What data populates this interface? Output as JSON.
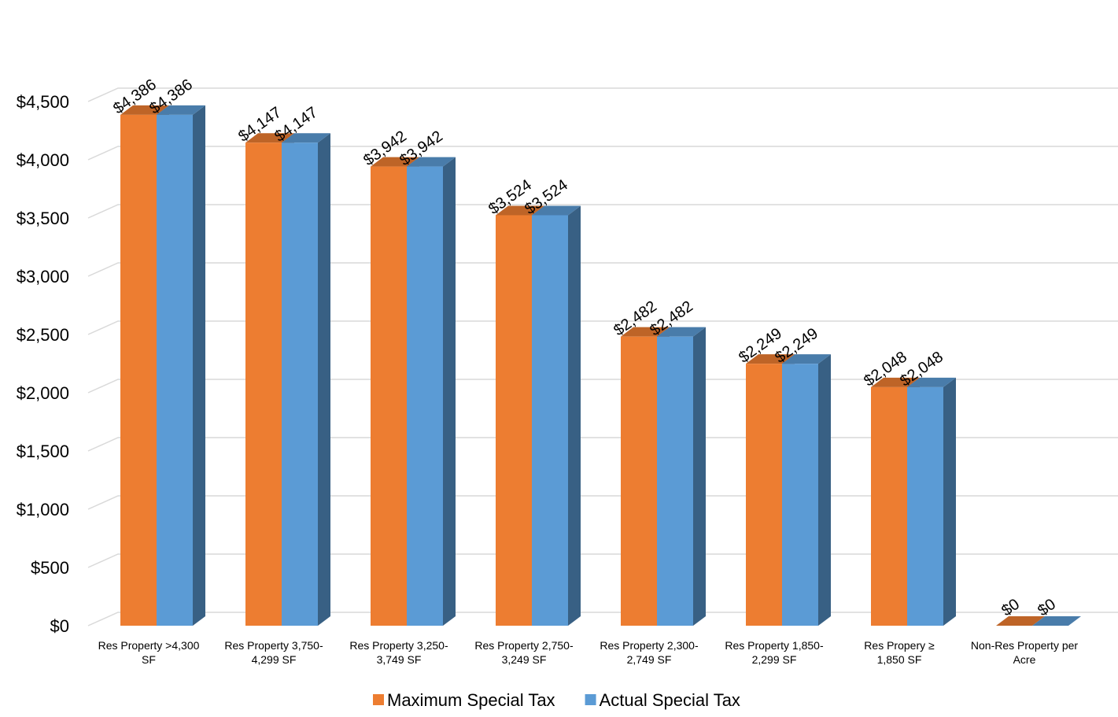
{
  "chart_data": {
    "type": "bar",
    "categories": [
      [
        "Res Property >4,300",
        "SF"
      ],
      [
        "Res Property 3,750-",
        "4,299 SF"
      ],
      [
        "Res Property 3,250-",
        "3,749 SF"
      ],
      [
        "Res Property 2,750-",
        "3,249 SF"
      ],
      [
        "Res Property 2,300-",
        "2,749 SF"
      ],
      [
        "Res Property 1,850-",
        "2,299 SF"
      ],
      [
        "Res Propery        ≥",
        "1,850 SF"
      ],
      [
        "Non-Res Property per",
        "Acre"
      ]
    ],
    "series": [
      {
        "name": "Maximum Special Tax",
        "color": "#ED7D31",
        "values": [
          4386,
          4147,
          3942,
          3524,
          2482,
          2249,
          2048,
          0
        ],
        "labels": [
          "$4,386",
          "$4,147",
          "$3,942",
          "$3,524",
          "$2,482",
          "$2,249",
          "$2,048",
          "$0"
        ]
      },
      {
        "name": "Actual Special Tax",
        "color": "#5B9BD5",
        "values": [
          4386,
          4147,
          3942,
          3524,
          2482,
          2249,
          2048,
          0
        ],
        "labels": [
          "$4,386",
          "$4,147",
          "$3,942",
          "$3,524",
          "$2,482",
          "$2,249",
          "$2,048",
          "$0"
        ]
      }
    ],
    "y_ticks": [
      "$0",
      "$500",
      "$1,000",
      "$1,500",
      "$2,000",
      "$2,500",
      "$3,000",
      "$3,500",
      "$4,000",
      "$4,500"
    ],
    "ylim": [
      0,
      4500
    ],
    "y_step": 500,
    "grid": true,
    "legend": "bottom",
    "title": "",
    "xlabel": "",
    "ylabel": ""
  }
}
